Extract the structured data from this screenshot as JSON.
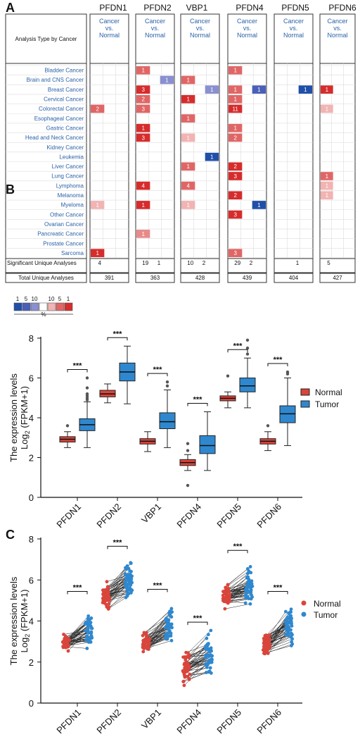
{
  "panels": {
    "a": "A",
    "b": "B",
    "c": "C"
  },
  "heatmap": {
    "genes": [
      "PFDN1",
      "PFDN2",
      "VBP1",
      "PFDN4",
      "PFDN5",
      "PFDN6"
    ],
    "comparison_label": [
      "Cancer",
      "vs.",
      "Normal"
    ],
    "row_header": "Analysis Type by Cancer",
    "cancers": [
      "Bladder Cancer",
      "Brain and CNS Cancer",
      "Breast Cancer",
      "Cervical Cancer",
      "Colorectal Cancer",
      "Esophageal Cancer",
      "Gastric Cancer",
      "Head and Neck Cancer",
      "Kidney Cancer",
      "Leukemia",
      "Liver Cancer",
      "Lung Cancer",
      "Lymphoma",
      "Melanoma",
      "Myeloma",
      "Other Cancer",
      "Ovarian Cancer",
      "Pancreatic Cancer",
      "Prostate Cancer",
      "Sarcoma"
    ],
    "cells": [
      {
        "gene": 0,
        "row": 4,
        "side": "up",
        "value": "2",
        "color": "#e06666"
      },
      {
        "gene": 0,
        "row": 14,
        "side": "up",
        "value": "1",
        "color": "#f2b3b3"
      },
      {
        "gene": 0,
        "row": 19,
        "side": "up",
        "value": "1",
        "color": "#d62c2c"
      },
      {
        "gene": 1,
        "row": 0,
        "side": "up",
        "value": "1",
        "color": "#e06666"
      },
      {
        "gene": 1,
        "row": 1,
        "side": "down",
        "value": "1",
        "color": "#8a8fcf"
      },
      {
        "gene": 1,
        "row": 2,
        "side": "up",
        "value": "3",
        "color": "#d62c2c"
      },
      {
        "gene": 1,
        "row": 3,
        "side": "up",
        "value": "2",
        "color": "#e06666"
      },
      {
        "gene": 1,
        "row": 4,
        "side": "up",
        "value": "3",
        "color": "#e06666"
      },
      {
        "gene": 1,
        "row": 6,
        "side": "up",
        "value": "1",
        "color": "#d62c2c"
      },
      {
        "gene": 1,
        "row": 7,
        "side": "up",
        "value": "3",
        "color": "#d62c2c"
      },
      {
        "gene": 1,
        "row": 12,
        "side": "up",
        "value": "4",
        "color": "#d62c2c"
      },
      {
        "gene": 1,
        "row": 14,
        "side": "up",
        "value": "1",
        "color": "#d62c2c"
      },
      {
        "gene": 1,
        "row": 17,
        "side": "up",
        "value": "1",
        "color": "#e88a8a"
      },
      {
        "gene": 2,
        "row": 1,
        "side": "up",
        "value": "1",
        "color": "#e06666"
      },
      {
        "gene": 2,
        "row": 2,
        "side": "down",
        "value": "1",
        "color": "#8a8fcf"
      },
      {
        "gene": 2,
        "row": 3,
        "side": "up",
        "value": "1",
        "color": "#d62c2c"
      },
      {
        "gene": 2,
        "row": 5,
        "side": "up",
        "value": "1",
        "color": "#e06666"
      },
      {
        "gene": 2,
        "row": 7,
        "side": "up",
        "value": "1",
        "color": "#f2b3b3"
      },
      {
        "gene": 2,
        "row": 9,
        "side": "down",
        "value": "1",
        "color": "#1f4fa8"
      },
      {
        "gene": 2,
        "row": 10,
        "side": "up",
        "value": "1",
        "color": "#e06666"
      },
      {
        "gene": 2,
        "row": 12,
        "side": "up",
        "value": "4",
        "color": "#e06666"
      },
      {
        "gene": 2,
        "row": 14,
        "side": "up",
        "value": "1",
        "color": "#f2b3b3"
      },
      {
        "gene": 3,
        "row": 0,
        "side": "up",
        "value": "1",
        "color": "#e06666"
      },
      {
        "gene": 3,
        "row": 2,
        "side": "up",
        "value": "1",
        "color": "#e06666"
      },
      {
        "gene": 3,
        "row": 2,
        "side": "down",
        "value": "1",
        "color": "#4a5fb8"
      },
      {
        "gene": 3,
        "row": 3,
        "side": "up",
        "value": "1",
        "color": "#e06666"
      },
      {
        "gene": 3,
        "row": 4,
        "side": "up",
        "value": "11",
        "color": "#d62c2c"
      },
      {
        "gene": 3,
        "row": 6,
        "side": "up",
        "value": "1",
        "color": "#e06666"
      },
      {
        "gene": 3,
        "row": 7,
        "side": "up",
        "value": "2",
        "color": "#e06666"
      },
      {
        "gene": 3,
        "row": 10,
        "side": "up",
        "value": "2",
        "color": "#d62c2c"
      },
      {
        "gene": 3,
        "row": 11,
        "side": "up",
        "value": "3",
        "color": "#d62c2c"
      },
      {
        "gene": 3,
        "row": 13,
        "side": "up",
        "value": "2",
        "color": "#d62c2c"
      },
      {
        "gene": 3,
        "row": 14,
        "side": "down",
        "value": "1",
        "color": "#1f4fa8"
      },
      {
        "gene": 3,
        "row": 15,
        "side": "up",
        "value": "3",
        "color": "#d62c2c"
      },
      {
        "gene": 3,
        "row": 19,
        "side": "up",
        "value": "3",
        "color": "#e06666"
      },
      {
        "gene": 4,
        "row": 2,
        "side": "down",
        "value": "1",
        "color": "#1f4fa8"
      },
      {
        "gene": 5,
        "row": 2,
        "side": "up",
        "value": "1",
        "color": "#d62c2c"
      },
      {
        "gene": 5,
        "row": 4,
        "side": "up",
        "value": "1",
        "color": "#f2b3b3"
      },
      {
        "gene": 5,
        "row": 11,
        "side": "up",
        "value": "1",
        "color": "#e06666"
      },
      {
        "gene": 5,
        "row": 12,
        "side": "up",
        "value": "1",
        "color": "#f2b3b3"
      },
      {
        "gene": 5,
        "row": 13,
        "side": "up",
        "value": "1",
        "color": "#f2b3b3"
      }
    ],
    "significant_label": "Significant Unique Analyses",
    "total_label": "Total Unique Analyses",
    "significant": [
      [
        "4",
        ""
      ],
      [
        "19",
        "1"
      ],
      [
        "10",
        "2"
      ],
      [
        "29",
        "2"
      ],
      [
        "",
        "1"
      ],
      [
        "5",
        ""
      ]
    ],
    "total": [
      "391",
      "363",
      "428",
      "439",
      "404",
      "427"
    ],
    "scale": {
      "down_labels": [
        "1",
        "5",
        "10"
      ],
      "up_labels": [
        "10",
        "5",
        "1"
      ],
      "unit": "%",
      "colors": [
        "#1f4fa8",
        "#4a5fb8",
        "#8a8fcf",
        "#ffffff",
        "#f2b3b3",
        "#e06666",
        "#d62c2c"
      ]
    }
  },
  "colors": {
    "normal": "#d9453b",
    "tumor": "#2f88cf"
  },
  "chart_data": [
    {
      "type": "box",
      "panel": "B",
      "categories": [
        "PFDN1",
        "PFDN2",
        "VBP1",
        "PFDN4",
        "PFDN5",
        "PFDN6"
      ],
      "ylabel_line1": "The expression levels",
      "ylabel_line2_main": "Log",
      "ylabel_line2_sub": "2",
      "ylabel_line2_rest": " (FPKM+1)",
      "ylim": [
        0,
        8
      ],
      "yticks": [
        0,
        2,
        4,
        6,
        8
      ],
      "legend": [
        "Normal",
        "Tumor"
      ],
      "legend_position": "right",
      "significance": "***",
      "series": [
        {
          "name": "Normal",
          "boxes": [
            {
              "min": 2.5,
              "q1": 2.78,
              "median": 2.92,
              "q3": 3.05,
              "max": 3.3,
              "outliers": [
                3.6
              ]
            },
            {
              "min": 4.75,
              "q1": 5.05,
              "median": 5.2,
              "q3": 5.38,
              "max": 5.7,
              "outliers": []
            },
            {
              "min": 2.3,
              "q1": 2.68,
              "median": 2.82,
              "q3": 2.95,
              "max": 3.3,
              "outliers": []
            },
            {
              "min": 1.35,
              "q1": 1.6,
              "median": 1.75,
              "q3": 1.9,
              "max": 2.15,
              "outliers": [
                0.6,
                2.35,
                2.7
              ]
            },
            {
              "min": 4.5,
              "q1": 4.85,
              "median": 4.98,
              "q3": 5.1,
              "max": 5.3,
              "outliers": [
                6.1
              ]
            },
            {
              "min": 2.35,
              "q1": 2.68,
              "median": 2.82,
              "q3": 2.95,
              "max": 3.3,
              "outliers": [
                3.6
              ]
            }
          ]
        },
        {
          "name": "Tumor",
          "boxes": [
            {
              "min": 2.5,
              "q1": 3.35,
              "median": 3.65,
              "q3": 3.95,
              "max": 4.8,
              "outliers": [
                4.9,
                5.0,
                5.1,
                5.2,
                5.5,
                6.0
              ]
            },
            {
              "min": 4.7,
              "q1": 5.85,
              "median": 6.3,
              "q3": 6.75,
              "max": 7.6,
              "outliers": []
            },
            {
              "min": 2.5,
              "q1": 3.45,
              "median": 3.8,
              "q3": 4.25,
              "max": 5.4,
              "outliers": [
                5.6,
                5.8
              ]
            },
            {
              "min": 1.35,
              "q1": 2.2,
              "median": 2.6,
              "q3": 3.1,
              "max": 4.3,
              "outliers": []
            },
            {
              "min": 4.5,
              "q1": 5.3,
              "median": 5.6,
              "q3": 6.0,
              "max": 7.0,
              "outliers": [
                7.2,
                7.5,
                7.9
              ]
            },
            {
              "min": 2.6,
              "q1": 3.75,
              "median": 4.2,
              "q3": 4.6,
              "max": 6.0,
              "outliers": [
                6.2,
                6.3
              ]
            }
          ]
        }
      ]
    },
    {
      "type": "paired-scatter",
      "panel": "C",
      "categories": [
        "PFDN1",
        "PFDN2",
        "VBP1",
        "PFDN4",
        "PFDN5",
        "PFDN6"
      ],
      "ylabel_line1": "The expression levels",
      "ylabel_line2_main": "Log",
      "ylabel_line2_sub": "2",
      "ylabel_line2_rest": " (FPKM+1)",
      "ylim": [
        0,
        8
      ],
      "yticks": [
        0,
        2,
        4,
        6,
        8
      ],
      "legend": [
        "Normal",
        "Tumor"
      ],
      "legend_position": "right",
      "significance": "***",
      "pairs_per_gene": 50,
      "series": [
        {
          "name": "Normal",
          "median": [
            3.0,
            5.3,
            3.0,
            1.9,
            5.1,
            2.9
          ],
          "min": [
            2.3,
            4.4,
            2.2,
            0.6,
            4.5,
            2.2
          ],
          "max": [
            3.6,
            6.0,
            3.6,
            2.8,
            5.9,
            3.6
          ]
        },
        {
          "name": "Tumor",
          "median": [
            3.5,
            6.1,
            3.9,
            2.5,
            5.6,
            3.8
          ],
          "min": [
            2.5,
            5.1,
            2.2,
            1.4,
            4.4,
            2.2
          ],
          "max": [
            5.1,
            7.3,
            5.2,
            3.6,
            7.1,
            5.1
          ]
        }
      ]
    }
  ]
}
